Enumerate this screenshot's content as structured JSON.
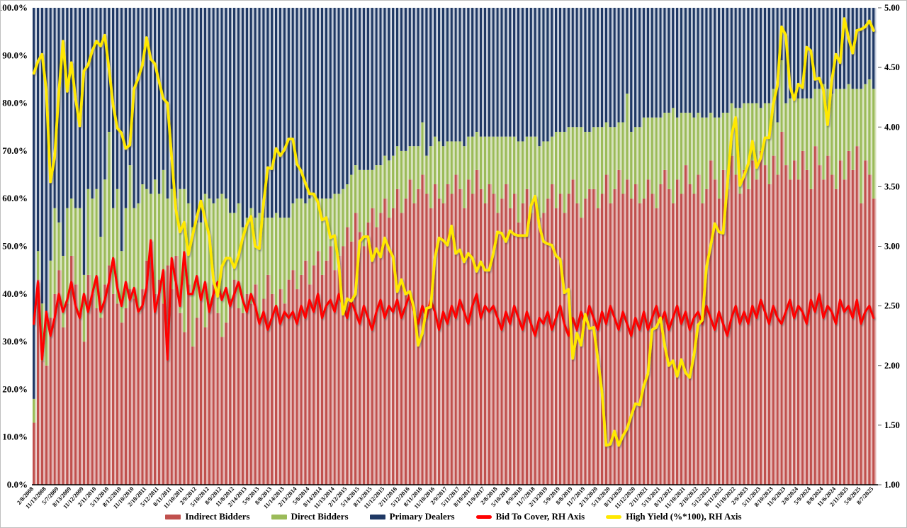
{
  "chart_data": {
    "type": "bar",
    "subtype": "stacked-100-percent-columns-with-overlay-lines",
    "title": "",
    "xlabel": "",
    "ylabel_left": "",
    "ylabel_right": "",
    "grid": false,
    "legend_position": "bottom",
    "left_axis": {
      "min": 0,
      "max": 100,
      "step": 10,
      "format": "percent-1dp"
    },
    "right_axis": {
      "min": 1.0,
      "max": 5.0,
      "step": 0.5,
      "format": "2dp"
    },
    "label_every_n_bars": 3,
    "x_labels": [
      "2/8/2008",
      "11/13/2008",
      "5/7/2009",
      "8/13/2009",
      "11/12/2009",
      "2/11/2010",
      "5/13/2010",
      "8/12/2010",
      "11/10/2010",
      "2/10/2011",
      "5/12/2011",
      "8/11/2011",
      "11/10/2011",
      "2/9/2012",
      "5/10/2012",
      "8/9/2012",
      "11/8/2012",
      "2/14/2013",
      "5/9/2013",
      "8/8/2013",
      "11/14/2013",
      "2/13/2014",
      "5/8/2014",
      "8/14/2014",
      "11/13/2014",
      "2/12/2015",
      "5/14/2015",
      "8/13/2015",
      "11/12/2015",
      "2/11/2016",
      "5/12/2016",
      "8/11/2016",
      "11/10/2016",
      "2/9/2017",
      "5/11/2017",
      "8/10/2017",
      "11/9/2017",
      "2/8/2018",
      "5/10/2018",
      "8/9/2018",
      "11/7/2018",
      "2/13/2019",
      "5/9/2019",
      "8/8/2019",
      "11/7/2019",
      "2/13/2020",
      "5/13/2020",
      "8/13/2020",
      "11/12/2020",
      "2/11/2021",
      "5/13/2021",
      "8/12/2021",
      "11/10/2021",
      "2/10/2022",
      "5/12/2022",
      "8/11/2022",
      "11/10/2022",
      "2/9/2023",
      "5/11/2023",
      "8/10/2023",
      "11/9/2023",
      "2/8/2024",
      "5/9/2024",
      "8/8/2024",
      "11/6/2024",
      "2/11/2025",
      "5/8/2025",
      "8/7/2025"
    ],
    "bar_series": [
      {
        "name": "Indirect Bidders",
        "color": "#C0504D",
        "light_color": "#E3B3B1",
        "values": [
          13,
          43,
          26,
          25,
          35,
          40,
          45,
          33,
          38,
          48,
          42,
          36,
          30,
          44,
          40,
          37,
          35,
          42,
          46,
          40,
          38,
          34,
          37,
          41,
          39,
          36,
          41,
          47,
          51,
          40,
          43,
          38,
          46,
          41,
          48,
          36,
          32,
          42,
          29,
          35,
          40,
          33,
          38,
          42,
          36,
          31,
          34,
          39,
          43,
          37,
          36,
          40,
          38,
          42,
          35,
          39,
          44,
          40,
          37,
          41,
          38,
          43,
          45,
          41,
          44,
          47,
          42,
          46,
          49,
          44,
          47,
          50,
          45,
          48,
          50,
          54,
          51,
          57,
          53,
          50,
          55,
          58,
          54,
          57,
          60,
          56,
          58,
          62,
          57,
          60,
          64,
          59,
          62,
          65,
          61,
          58,
          63,
          60,
          59,
          63,
          61,
          65,
          62,
          58,
          64,
          61,
          66,
          62,
          59,
          63,
          61,
          57,
          60,
          63,
          58,
          61,
          55,
          59,
          62,
          57,
          60,
          56,
          57,
          60,
          63,
          58,
          61,
          57,
          61,
          64,
          59,
          56,
          60,
          62,
          62,
          58,
          61,
          65,
          59,
          62,
          66,
          61,
          64,
          60,
          63,
          59,
          60,
          64,
          61,
          58,
          63,
          66,
          62,
          59,
          64,
          61,
          67,
          63,
          61,
          65,
          59,
          62,
          68,
          64,
          60,
          66,
          62,
          69,
          65,
          61,
          66,
          62,
          68,
          64,
          70,
          67,
          63,
          69,
          65,
          74,
          67,
          64,
          68,
          64,
          70,
          66,
          62,
          71,
          67,
          64,
          69,
          65,
          62,
          68,
          64,
          70,
          66,
          71,
          59,
          68,
          65,
          60
        ]
      },
      {
        "name": "Direct Bidders",
        "color": "#9BBB59",
        "light_color": "#D7E2BB",
        "values": [
          5,
          6,
          12,
          10,
          12,
          18,
          10,
          15,
          20,
          12,
          16,
          22,
          14,
          18,
          20,
          25,
          17,
          22,
          28,
          18,
          24,
          15,
          21,
          26,
          19,
          23,
          22,
          15,
          10,
          24,
          18,
          28,
          14,
          21,
          12,
          26,
          30,
          17,
          25,
          20,
          15,
          28,
          22,
          17,
          24,
          30,
          26,
          18,
          14,
          22,
          18,
          16,
          20,
          14,
          22,
          17,
          12,
          16,
          20,
          15,
          18,
          13,
          14,
          19,
          16,
          12,
          18,
          15,
          11,
          16,
          13,
          10,
          16,
          13,
          12,
          9,
          14,
          10,
          13,
          16,
          11,
          8,
          13,
          10,
          9,
          12,
          11,
          9,
          13,
          10,
          7,
          12,
          9,
          11,
          8,
          13,
          10,
          12,
          12,
          9,
          11,
          7,
          10,
          13,
          9,
          12,
          8,
          11,
          14,
          10,
          12,
          16,
          13,
          10,
          15,
          12,
          17,
          13,
          11,
          16,
          13,
          15,
          15,
          12,
          10,
          16,
          13,
          17,
          14,
          11,
          16,
          19,
          14,
          12,
          13,
          17,
          14,
          11,
          16,
          13,
          10,
          15,
          18,
          14,
          12,
          16,
          17,
          13,
          16,
          19,
          14,
          12,
          16,
          20,
          13,
          17,
          11,
          15,
          16,
          13,
          18,
          15,
          10,
          13,
          17,
          12,
          16,
          11,
          14,
          18,
          14,
          18,
          12,
          16,
          9,
          13,
          17,
          14,
          11,
          15,
          13,
          17,
          13,
          17,
          11,
          15,
          19,
          12,
          16,
          20,
          14,
          17,
          21,
          15,
          19,
          14,
          17,
          12,
          24,
          16,
          20,
          23
        ]
      },
      {
        "name": "Primary Dealers",
        "color": "#1F3864",
        "light_color": "#C2CBDA",
        "values_note": "remainder to 100% of each stacked column"
      }
    ],
    "line_series": [
      {
        "name": "Bid To Cover, RH Axis",
        "color": "#FF0000",
        "axis": "right",
        "values": [
          2.35,
          2.7,
          2.05,
          2.45,
          2.25,
          2.4,
          2.6,
          2.45,
          2.55,
          2.7,
          2.5,
          2.4,
          2.6,
          2.45,
          2.6,
          2.75,
          2.45,
          2.55,
          2.7,
          2.9,
          2.65,
          2.5,
          2.7,
          2.55,
          2.65,
          2.45,
          2.5,
          2.65,
          3.05,
          2.45,
          2.6,
          2.8,
          2.05,
          2.9,
          2.7,
          2.5,
          2.95,
          2.6,
          2.6,
          2.75,
          2.55,
          2.7,
          2.45,
          2.6,
          2.7,
          2.55,
          2.65,
          2.5,
          2.6,
          2.7,
          2.55,
          2.45,
          2.6,
          2.5,
          2.35,
          2.45,
          2.3,
          2.4,
          2.5,
          2.35,
          2.45,
          2.4,
          2.45,
          2.35,
          2.5,
          2.4,
          2.55,
          2.45,
          2.6,
          2.4,
          2.5,
          2.55,
          2.45,
          2.6,
          2.5,
          2.4,
          2.55,
          2.45,
          2.35,
          2.5,
          2.4,
          2.3,
          2.45,
          2.55,
          2.4,
          2.5,
          2.45,
          2.55,
          2.4,
          2.5,
          2.6,
          2.45,
          2.35,
          2.5,
          2.4,
          2.55,
          2.45,
          2.3,
          2.45,
          2.35,
          2.5,
          2.4,
          2.55,
          2.45,
          2.35,
          2.5,
          2.6,
          2.4,
          2.5,
          2.45,
          2.5,
          2.4,
          2.3,
          2.45,
          2.35,
          2.5,
          2.4,
          2.3,
          2.45,
          2.35,
          2.25,
          2.4,
          2.35,
          2.45,
          2.3,
          2.4,
          2.5,
          2.35,
          2.25,
          2.4,
          2.3,
          2.45,
          2.35,
          2.5,
          2.4,
          2.3,
          2.45,
          2.35,
          2.5,
          2.4,
          2.3,
          2.45,
          2.35,
          2.25,
          2.4,
          2.3,
          2.45,
          2.3,
          2.4,
          2.5,
          2.35,
          2.45,
          2.3,
          2.4,
          2.5,
          2.35,
          2.45,
          2.3,
          2.4,
          2.45,
          2.35,
          2.5,
          2.4,
          2.3,
          2.45,
          2.35,
          2.25,
          2.4,
          2.5,
          2.35,
          2.45,
          2.35,
          2.5,
          2.4,
          2.55,
          2.45,
          2.35,
          2.5,
          2.4,
          2.35,
          2.45,
          2.55,
          2.4,
          2.5,
          2.45,
          2.35,
          2.55,
          2.45,
          2.6,
          2.4,
          2.5,
          2.45,
          2.35,
          2.55,
          2.45,
          2.5,
          2.4,
          2.55,
          2.35,
          2.45,
          2.5,
          2.4
        ]
      },
      {
        "name": "High Yield (%*100), RH Axis",
        "color": "#FFE800",
        "axis": "right",
        "values": [
          4.45,
          4.55,
          4.61,
          4.31,
          3.54,
          3.75,
          4.29,
          4.72,
          4.3,
          4.54,
          4.24,
          4.01,
          4.47,
          4.52,
          4.64,
          4.72,
          4.68,
          4.77,
          4.49,
          4.18,
          3.99,
          3.95,
          3.82,
          3.85,
          4.32,
          4.41,
          4.52,
          4.75,
          4.57,
          4.53,
          4.38,
          4.24,
          4.2,
          3.75,
          3.31,
          3.12,
          3.2,
          2.93,
          3.09,
          3.24,
          3.38,
          3.23,
          3.09,
          2.72,
          2.58,
          2.83,
          2.9,
          2.9,
          2.82,
          2.92,
          3.07,
          3.18,
          3.25,
          3.0,
          2.98,
          3.36,
          3.66,
          3.65,
          3.82,
          3.76,
          3.81,
          3.9,
          3.9,
          3.69,
          3.63,
          3.53,
          3.44,
          3.44,
          3.37,
          3.22,
          3.24,
          3.07,
          3.09,
          2.85,
          2.43,
          2.56,
          2.54,
          2.6,
          3.04,
          3.08,
          3.08,
          2.88,
          2.98,
          2.91,
          3.07,
          2.98,
          2.91,
          2.62,
          2.72,
          2.6,
          2.62,
          2.48,
          2.17,
          2.27,
          2.48,
          2.49,
          2.9,
          3.07,
          3.05,
          3.01,
          3.17,
          2.94,
          2.97,
          2.87,
          2.94,
          2.9,
          2.79,
          2.87,
          2.8,
          2.8,
          2.94,
          3.12,
          3.11,
          3.04,
          3.13,
          3.1,
          3.09,
          3.09,
          3.09,
          3.34,
          3.42,
          3.17,
          3.04,
          3.02,
          3.01,
          2.92,
          2.89,
          2.61,
          2.64,
          2.06,
          2.27,
          2.17,
          2.43,
          2.31,
          2.32,
          2.06,
          1.78,
          1.33,
          1.34,
          1.45,
          1.33,
          1.41,
          1.47,
          1.58,
          1.68,
          1.67,
          1.83,
          1.93,
          2.3,
          2.32,
          2.4,
          2.17,
          2.0,
          2.04,
          1.91,
          2.05,
          1.94,
          1.9,
          2.08,
          2.34,
          2.38,
          2.82,
          3.0,
          3.19,
          3.12,
          3.11,
          3.51,
          3.93,
          4.08,
          3.51,
          3.59,
          3.69,
          3.88,
          3.66,
          3.74,
          3.91,
          3.91,
          4.19,
          4.35,
          4.84,
          4.77,
          4.34,
          4.23,
          4.36,
          4.33,
          4.67,
          4.64,
          4.4,
          4.41,
          4.31,
          4.02,
          4.39,
          4.61,
          4.54,
          4.91,
          4.75,
          4.62,
          4.81,
          4.82,
          4.84,
          4.89,
          4.81
        ]
      }
    ],
    "legend": [
      {
        "label": "Indirect Bidders",
        "swatch": "bar",
        "color": "#C0504D"
      },
      {
        "label": "Direct Bidders",
        "swatch": "bar",
        "color": "#9BBB59"
      },
      {
        "label": "Primary Dealers",
        "swatch": "bar",
        "color": "#1F3864"
      },
      {
        "label": "Bid To Cover, RH Axis",
        "swatch": "line",
        "color": "#FF0000"
      },
      {
        "label": "High Yield (%*100), RH Axis",
        "swatch": "line",
        "color": "#FFE800"
      }
    ]
  },
  "layout_colors": {
    "background": "#FFFFFF",
    "frame_border": "#BFBFBF",
    "axis_line": "#000000",
    "tick_text": "#000000"
  }
}
